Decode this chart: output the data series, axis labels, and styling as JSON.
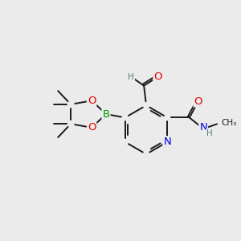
{
  "bg_color": "#ebebeb",
  "bond_color": "#1a1a1a",
  "bond_width": 1.4,
  "atom_colors": {
    "C": "#1a1a1a",
    "H": "#4d8080",
    "N": "#0000ee",
    "O": "#dd0000",
    "B": "#009900"
  },
  "font_size": 8.5
}
